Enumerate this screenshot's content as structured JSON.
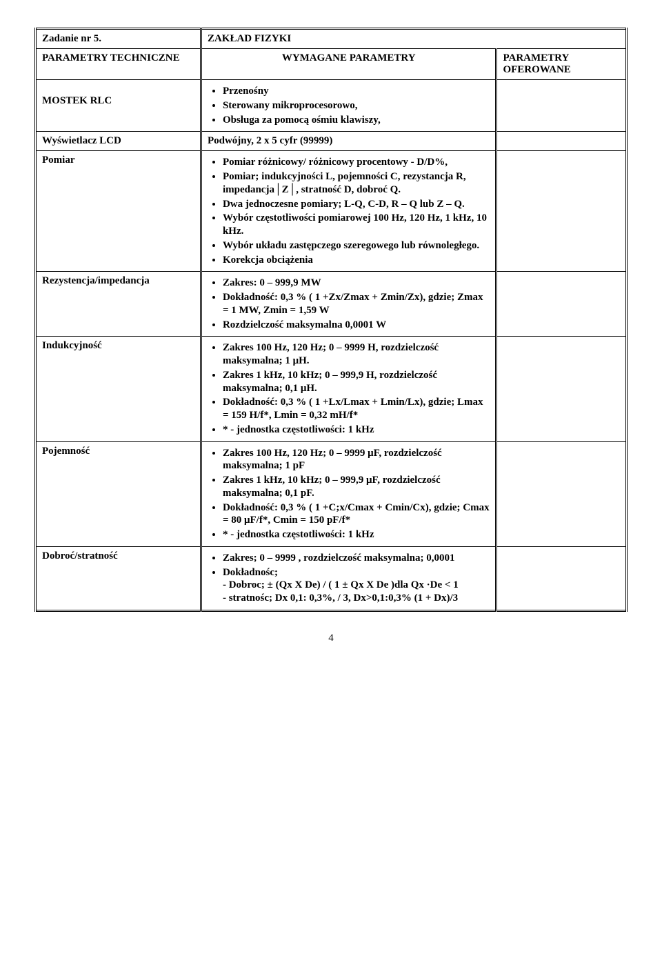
{
  "top": {
    "task": "Zadanie nr 5.",
    "dept": "ZAKŁAD FIZYKI"
  },
  "headers": {
    "col1": "PARAMETRY TECHNICZNE",
    "col2": "WYMAGANE PARAMETRY",
    "col3_line1": "PARAMETRY",
    "col3_line2": "OFEROWANE"
  },
  "rows": {
    "mostek": {
      "label": "MOSTEK RLC",
      "items": [
        "Przenośny",
        "Sterowany mikroprocesorowo,",
        "Obsługa za pomocą ośmiu klawiszy,"
      ]
    },
    "lcd": {
      "label": "Wyświetlacz LCD",
      "value": "Podwójny,  2 x 5 cyfr (99999)"
    },
    "pomiar": {
      "label": "Pomiar",
      "items": [
        "Pomiar różnicowy/ różnicowy procentowy - D/D%,",
        "Pomiar; indukcyjności L, pojemności C, rezystancja R, impedancja│Z│, stratność D, dobroć  Q.",
        "Dwa jednoczesne pomiary; L-Q, C-D, R – Q lub Z – Q.",
        "Wybór  częstotliwości pomiarowej 100 Hz, 120 Hz, 1 kHz, 10 kHz.",
        "Wybór układu zastępczego szeregowego lub równoległego.",
        "Korekcja obciążenia"
      ]
    },
    "rez": {
      "label": "Rezystencja/impedancja",
      "items": [
        "Zakres: 0 – 999,9 MW",
        "Dokładność: 0,3 % ( 1 +Zx/Zmax + Zmin/Zx), gdzie; Zmax = 1 MW, Zmin = 1,59 W",
        "Rozdzielczość maksymalna 0,0001 W"
      ]
    },
    "ind": {
      "label": "Indukcyjność",
      "items": [
        "Zakres 100 Hz, 120 Hz; 0 – 9999 H, rozdzielczość maksymalna; 1 μH.",
        "Zakres 1 kHz, 10 kHz; 0 – 999,9 H, rozdzielczość maksymalna; 0,1 μH.",
        "Dokładność: 0,3 % ( 1 +Lx/Lmax + Lmin/Lx), gdzie; Lmax = 159 H/f*, Lmin = 0,32 mH/f*",
        "* - jednostka częstotliwości: 1 kHz"
      ]
    },
    "poj": {
      "label": "Pojemność",
      "items": [
        "Zakres 100 Hz, 120 Hz; 0 – 9999 μF, rozdzielczość maksymalna; 1 pF",
        "Zakres 1 kHz, 10 kHz; 0 – 999,9 μF, rozdzielczość maksymalna; 0,1 pF.",
        "Dokładność: 0,3 % ( 1 +C;x/Cmax + Cmin/Cx), gdzie; Cmax = 80 μF/f*, Cmin = 150 pF/f*",
        "* - jednostka częstotliwości: 1 kHz"
      ]
    },
    "dob": {
      "label": "Dobroć/stratność",
      "items": [
        "Zakres; 0 – 9999 , rozdzielczość maksymalna; 0,0001",
        "Dokładnośc;\n- Dobroc; ± (Qx X De) / ( 1 ± Qx X De )dla Qx ·De < 1\n- stratnośc; Dx 0,1: 0,3%, / 3, Dx>0,1:0,3% (1 + Dx)/3"
      ]
    }
  },
  "pagenum": "4"
}
